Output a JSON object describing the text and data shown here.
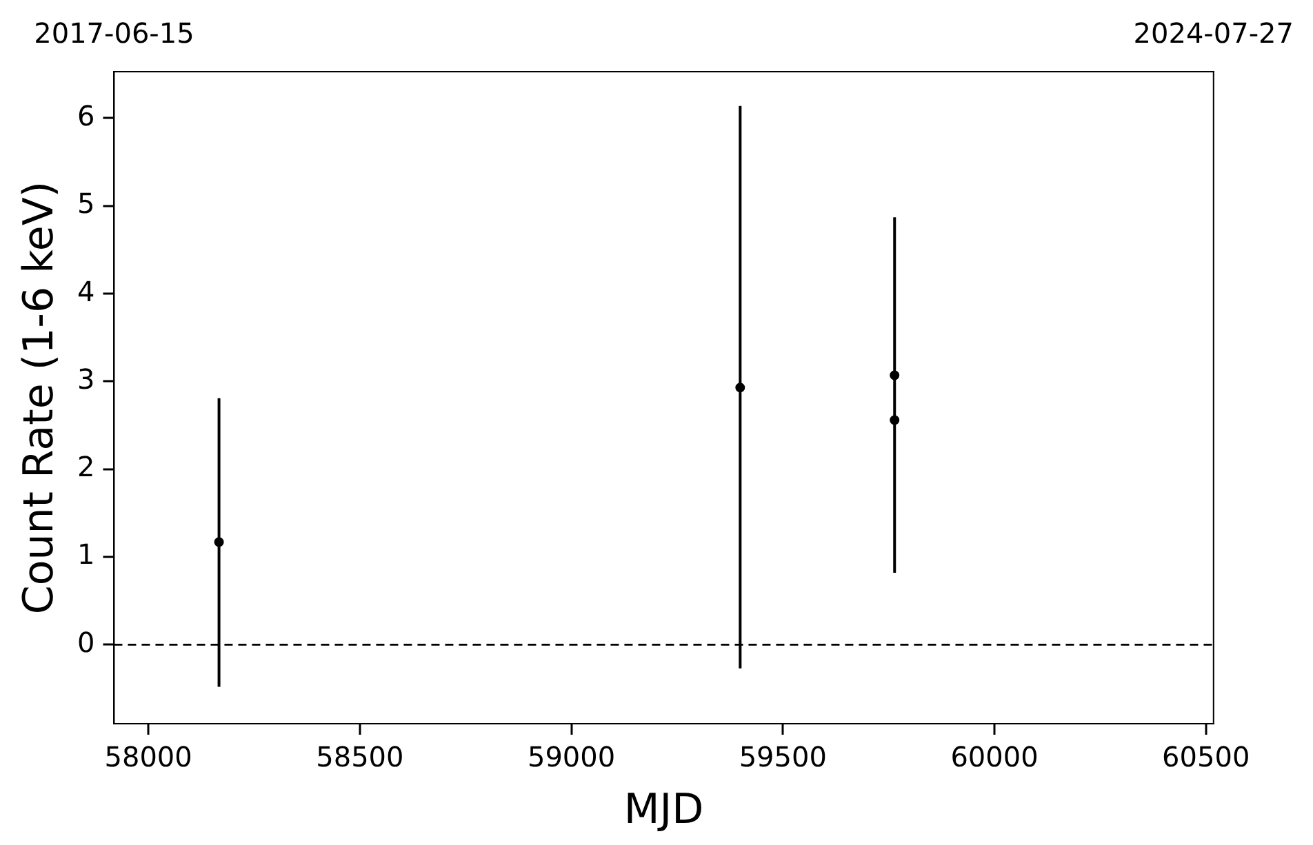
{
  "chart_data": {
    "type": "scatter",
    "xlabel": "MJD",
    "ylabel": "Count Rate (1-6 keV)",
    "series": [
      {
        "color": "#000000",
        "x": [
          58167,
          59399,
          59764,
          59764
        ],
        "values": [
          1.17,
          2.93,
          3.07,
          2.56
        ],
        "errors": [
          [
            -0.48,
            2.81
          ],
          [
            -0.27,
            6.14
          ],
          [
            0.82,
            4.87
          ],
          null
        ]
      }
    ],
    "xlim": [
      57919,
      60518
    ],
    "xticks": [
      58000,
      58500,
      59000,
      59500,
      60000,
      60500
    ],
    "x2lim": [
      "2017-06-15",
      "2024-07-27"
    ],
    "x2ticks": [
      "2017-06-15",
      "2024-07-27"
    ],
    "ylim": [
      -0.9,
      6.53
    ],
    "yticks": [
      0,
      1,
      2,
      3,
      4,
      5,
      6
    ],
    "ref_lines": [
      {
        "axis": "y",
        "value": 0,
        "color": "#000000",
        "line_style": "dashed"
      }
    ],
    "marker": "circle",
    "grid": false,
    "legend": false
  }
}
